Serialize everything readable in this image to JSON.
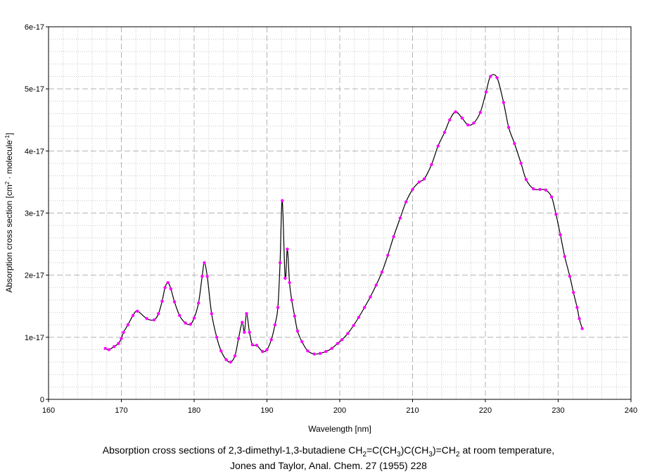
{
  "chart_data": {
    "type": "line",
    "xlabel": "Wavelength [nm]",
    "ylabel": {
      "part1": "Absorption cross section [cm",
      "sup1": "2",
      "part2": " · molecule",
      "sup2": "-1",
      "part3": "]"
    },
    "xlim": [
      160,
      240
    ],
    "ylim": [
      0,
      6e-17
    ],
    "x_ticks": [
      160,
      170,
      180,
      190,
      200,
      210,
      220,
      230,
      240
    ],
    "x_tick_labels": [
      "160",
      "170",
      "180",
      "190",
      "200",
      "210",
      "220",
      "230",
      "240"
    ],
    "y_ticks": [
      0,
      1e-17,
      2e-17,
      3e-17,
      4e-17,
      5e-17,
      6e-17
    ],
    "y_tick_labels": [
      "0",
      "1e-17",
      "2e-17",
      "3e-17",
      "4e-17",
      "5e-17",
      "6e-17"
    ],
    "grid": true,
    "line_color": "#000000",
    "marker_color": "#ff00ff",
    "series": [
      {
        "x": [
          167.8,
          168.3,
          169.0,
          169.6,
          170.0,
          170.3,
          170.9,
          171.6,
          172.2,
          173.5,
          174.5,
          175.1,
          175.6,
          176.0,
          176.4,
          176.8,
          177.3,
          178.0,
          178.8,
          179.5,
          180.0,
          180.6,
          181.1,
          181.4,
          181.8,
          182.4,
          183.1,
          183.7,
          184.4,
          185.0,
          185.6,
          186.1,
          186.6,
          186.9,
          187.2,
          187.6,
          188.0,
          188.6,
          189.4,
          190.0,
          190.6,
          191.1,
          191.5,
          191.8,
          192.1,
          192.5,
          192.8,
          193.1,
          193.4,
          193.8,
          194.2,
          194.8,
          195.6,
          196.5,
          197.3,
          198.1,
          198.9,
          199.7,
          200.3,
          201.1,
          201.9,
          202.6,
          203.4,
          204.2,
          205.0,
          205.8,
          206.6,
          207.4,
          208.3,
          209.1,
          210.0,
          210.9,
          211.6,
          212.6,
          213.5,
          214.4,
          215.1,
          215.9,
          216.8,
          217.6,
          218.4,
          219.3,
          220.1,
          220.7,
          221.6,
          222.5,
          223.2,
          224.0,
          224.9,
          225.6,
          226.6,
          227.5,
          228.3,
          229.1,
          229.7,
          230.3,
          230.9,
          231.6,
          232.1,
          232.6,
          232.9,
          233.3
        ],
        "y": [
          8.2e-18,
          8e-18,
          8.5e-18,
          9e-18,
          9.8e-18,
          1.08e-17,
          1.2e-17,
          1.35e-17,
          1.42e-17,
          1.3e-17,
          1.28e-17,
          1.38e-17,
          1.58e-17,
          1.8e-17,
          1.88e-17,
          1.78e-17,
          1.57e-17,
          1.35e-17,
          1.23e-17,
          1.21e-17,
          1.31e-17,
          1.55e-17,
          1.98e-17,
          2.2e-17,
          1.98e-17,
          1.38e-17,
          1e-17,
          7.8e-18,
          6.4e-18,
          6e-18,
          7e-18,
          9.8e-18,
          1.24e-17,
          1.08e-17,
          1.38e-17,
          1.08e-17,
          8.8e-18,
          8.7e-18,
          7.7e-18,
          8e-18,
          9.6e-18,
          1.2e-17,
          1.48e-17,
          2.2e-17,
          3.2e-17,
          1.95e-17,
          2.42e-17,
          1.88e-17,
          1.6e-17,
          1.34e-17,
          1.1e-17,
          9.3e-18,
          7.8e-18,
          7.3e-18,
          7.4e-18,
          7.7e-18,
          8.2e-18,
          9e-18,
          9.6e-18,
          1.06e-17,
          1.19e-17,
          1.32e-17,
          1.48e-17,
          1.65e-17,
          1.84e-17,
          2.05e-17,
          2.32e-17,
          2.62e-17,
          2.92e-17,
          3.18e-17,
          3.38e-17,
          3.5e-17,
          3.55e-17,
          3.78e-17,
          4.08e-17,
          4.3e-17,
          4.5e-17,
          4.63e-17,
          4.53e-17,
          4.42e-17,
          4.45e-17,
          4.62e-17,
          4.95e-17,
          5.2e-17,
          5.18e-17,
          4.78e-17,
          4.38e-17,
          4.12e-17,
          3.8e-17,
          3.54e-17,
          3.39e-17,
          3.38e-17,
          3.37e-17,
          3.26e-17,
          2.98e-17,
          2.65e-17,
          2.3e-17,
          1.98e-17,
          1.72e-17,
          1.48e-17,
          1.3e-17,
          1.14e-17
        ]
      }
    ]
  },
  "caption": {
    "line1_pre": "Absorption cross sections of 2,3-dimethyl-1,3-butadiene CH",
    "sub_a": "2",
    "line1_mid1": "=C(CH",
    "sub_b": "3",
    "line1_mid2": ")C(CH",
    "sub_c": "3",
    "line1_mid3": ")=CH",
    "sub_d": "2",
    "line1_post": " at room temperature,",
    "line2": "Jones and Taylor, Anal. Chem. 27 (1955) 228"
  }
}
